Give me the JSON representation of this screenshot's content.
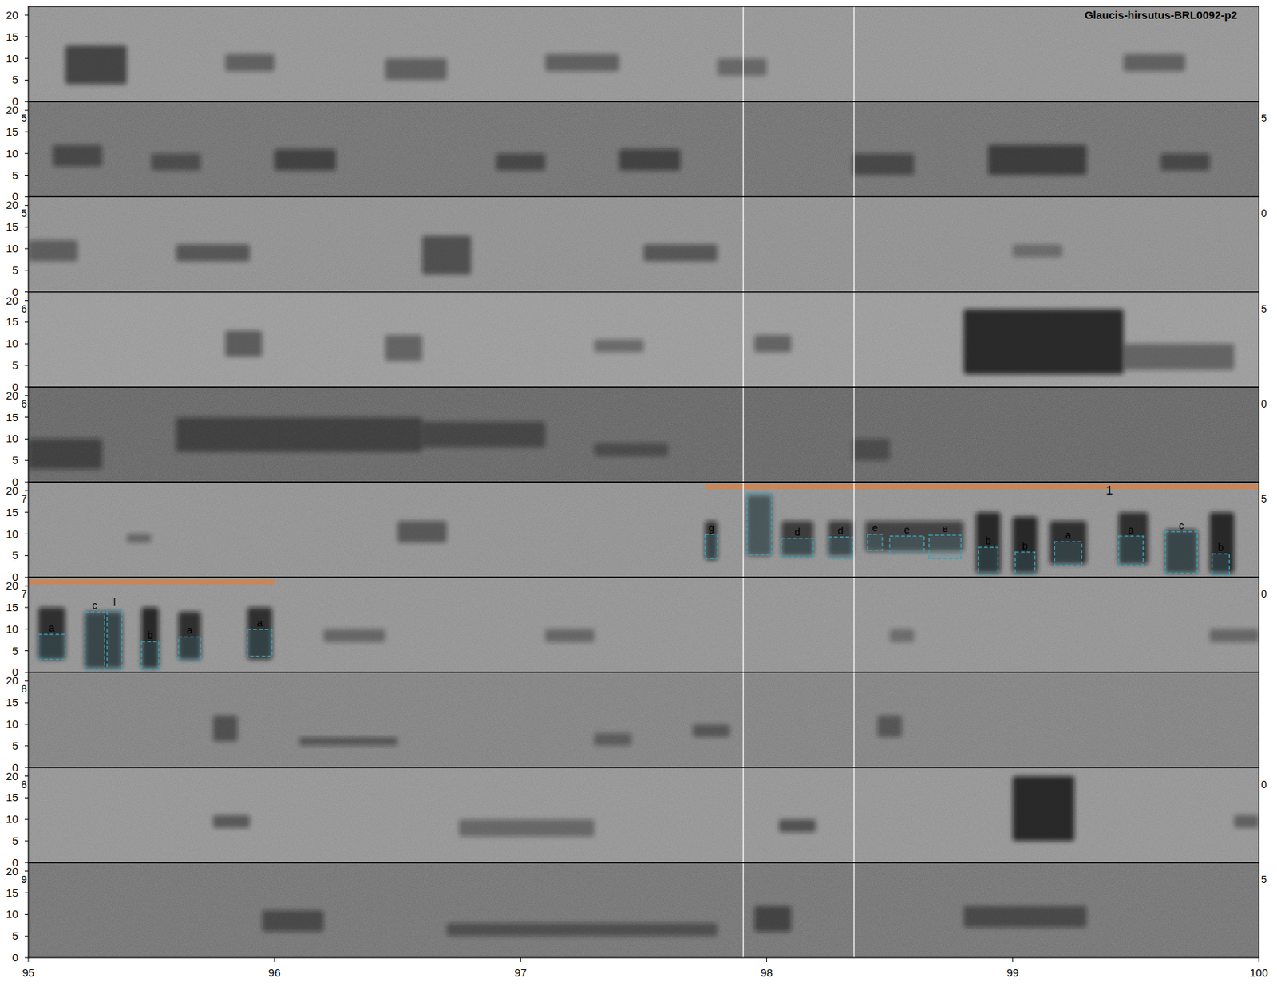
{
  "chart_data": {
    "type": "spectrogram",
    "title": "Glaucis-hirsutus-BRL0092-p2",
    "xlim": [
      95,
      100
    ],
    "xticks": [
      95,
      96,
      97,
      98,
      99,
      100
    ],
    "ylim": [
      0,
      22
    ],
    "yticks": [
      0,
      5,
      10,
      15,
      20
    ],
    "rows": [
      {
        "color": "#8f8f8f",
        "start_label": null,
        "end_label": null
      },
      {
        "color": "#6b6b6b",
        "start_label": "5",
        "end_label": "5"
      },
      {
        "color": "#8a8a8a",
        "start_label": "5",
        "end_label": "0"
      },
      {
        "color": "#959595",
        "start_label": "6",
        "end_label": "5"
      },
      {
        "color": "#5f5f5f",
        "start_label": "6",
        "end_label": "0"
      },
      {
        "color": "#8c8c8c",
        "start_label": "7",
        "end_label": "5"
      },
      {
        "color": "#8d8d8d",
        "start_label": "7",
        "end_label": "0"
      },
      {
        "color": "#7c7c7c",
        "start_label": "8",
        "end_label": null
      },
      {
        "color": "#8f8f8f",
        "start_label": "8",
        "end_label": "0"
      },
      {
        "color": "#6e6e6e",
        "start_label": "9",
        "end_label": "5"
      }
    ],
    "markers": [
      97.905,
      98.355
    ],
    "segments": [
      {
        "label": "1",
        "row": 6,
        "x": [
          97.75,
          100
        ],
        "color": "#c8875a"
      },
      {
        "row": 7,
        "x": [
          95,
          96
        ],
        "color": "#c8875a"
      }
    ],
    "annotations": [
      {
        "label": "g",
        "row": 6,
        "x": [
          97.75,
          97.8
        ],
        "freq": [
          4.3,
          9.9
        ]
      },
      {
        "row": 6,
        "x": [
          97.92,
          98.02
        ],
        "freq": [
          5.2,
          19.3
        ]
      },
      {
        "label": "d",
        "row": 6,
        "x": [
          98.06,
          98.19
        ],
        "freq": [
          4.7,
          9.0
        ]
      },
      {
        "label": "d",
        "row": 6,
        "x": [
          98.25,
          98.35
        ],
        "freq": [
          4.3,
          9.3
        ]
      },
      {
        "label": "e",
        "row": 6,
        "x": [
          98.41,
          98.47
        ],
        "freq": [
          6.2,
          9.9
        ]
      },
      {
        "label": "e",
        "row": 6,
        "x": [
          98.5,
          98.64
        ],
        "freq": [
          5.4,
          9.5
        ]
      },
      {
        "label": "e",
        "row": 6,
        "x": [
          98.66,
          98.79
        ],
        "freq": [
          4.3,
          9.7
        ]
      },
      {
        "label": "b",
        "row": 6,
        "x": [
          98.86,
          98.94
        ],
        "freq": [
          0.6,
          6.9
        ]
      },
      {
        "label": "b",
        "row": 6,
        "x": [
          99.01,
          99.09
        ],
        "freq": [
          0.6,
          5.8
        ]
      },
      {
        "label": "a",
        "row": 6,
        "x": [
          99.17,
          99.28
        ],
        "freq": [
          2.8,
          8.2
        ]
      },
      {
        "label": "a",
        "row": 6,
        "x": [
          99.43,
          99.53
        ],
        "freq": [
          2.8,
          9.5
        ]
      },
      {
        "label": "c",
        "row": 6,
        "x": [
          99.62,
          99.75
        ],
        "freq": [
          0.9,
          10.5
        ]
      },
      {
        "label": "b",
        "row": 6,
        "x": [
          99.81,
          99.88
        ],
        "freq": [
          0.4,
          5.4
        ]
      },
      {
        "label": "a",
        "row": 7,
        "x": [
          95.04,
          95.15
        ],
        "freq": [
          3.0,
          8.8
        ]
      },
      {
        "label": "c",
        "row": 7,
        "x": [
          95.23,
          95.31
        ],
        "freq": [
          0.6,
          14.0
        ]
      },
      {
        "label": "l",
        "row": 7,
        "x": [
          95.32,
          95.38
        ],
        "freq": [
          0.6,
          14.6
        ]
      },
      {
        "label": "b",
        "row": 7,
        "x": [
          95.46,
          95.53
        ],
        "freq": [
          0.6,
          7.1
        ]
      },
      {
        "label": "a",
        "row": 7,
        "x": [
          95.61,
          95.7
        ],
        "freq": [
          2.6,
          8.2
        ]
      },
      {
        "label": "a",
        "row": 7,
        "x": [
          95.89,
          95.99
        ],
        "freq": [
          3.7,
          9.9
        ]
      }
    ],
    "calls": [
      {
        "row": 1,
        "x": [
          95.15,
          95.4
        ],
        "freq": [
          4,
          13
        ],
        "level": 0.6
      },
      {
        "row": 1,
        "x": [
          95.8,
          96.0
        ],
        "freq": [
          7,
          11
        ],
        "level": 0.4
      },
      {
        "row": 1,
        "x": [
          96.45,
          96.7
        ],
        "freq": [
          5,
          10
        ],
        "level": 0.4
      },
      {
        "row": 1,
        "x": [
          97.1,
          97.4
        ],
        "freq": [
          7,
          11
        ],
        "level": 0.4
      },
      {
        "row": 1,
        "x": [
          97.8,
          98.0
        ],
        "freq": [
          6,
          10
        ],
        "level": 0.35
      },
      {
        "row": 1,
        "x": [
          99.45,
          99.7
        ],
        "freq": [
          7,
          11
        ],
        "level": 0.4
      },
      {
        "row": 2,
        "x": [
          95.1,
          95.3
        ],
        "freq": [
          7,
          12
        ],
        "level": 0.45
      },
      {
        "row": 2,
        "x": [
          95.5,
          95.7
        ],
        "freq": [
          6,
          10
        ],
        "level": 0.4
      },
      {
        "row": 2,
        "x": [
          96.0,
          96.25
        ],
        "freq": [
          6,
          11
        ],
        "level": 0.5
      },
      {
        "row": 2,
        "x": [
          96.9,
          97.1
        ],
        "freq": [
          6,
          10
        ],
        "level": 0.45
      },
      {
        "row": 2,
        "x": [
          97.4,
          97.65
        ],
        "freq": [
          6,
          11
        ],
        "level": 0.5
      },
      {
        "row": 2,
        "x": [
          98.35,
          98.6
        ],
        "freq": [
          5,
          10
        ],
        "level": 0.45
      },
      {
        "row": 2,
        "x": [
          98.9,
          99.3
        ],
        "freq": [
          5,
          12
        ],
        "level": 0.55
      },
      {
        "row": 2,
        "x": [
          99.6,
          99.8
        ],
        "freq": [
          6,
          10
        ],
        "level": 0.45
      },
      {
        "row": 3,
        "x": [
          95.0,
          95.2
        ],
        "freq": [
          7,
          12
        ],
        "level": 0.4
      },
      {
        "row": 3,
        "x": [
          95.6,
          95.9
        ],
        "freq": [
          7,
          11
        ],
        "level": 0.45
      },
      {
        "row": 3,
        "x": [
          96.6,
          96.8
        ],
        "freq": [
          4,
          13
        ],
        "level": 0.5
      },
      {
        "row": 3,
        "x": [
          97.5,
          97.8
        ],
        "freq": [
          7,
          11
        ],
        "level": 0.45
      },
      {
        "row": 3,
        "x": [
          99.0,
          99.2
        ],
        "freq": [
          8,
          11
        ],
        "level": 0.3
      },
      {
        "row": 4,
        "x": [
          95.8,
          95.95
        ],
        "freq": [
          7,
          13
        ],
        "level": 0.45
      },
      {
        "row": 4,
        "x": [
          96.45,
          96.6
        ],
        "freq": [
          6,
          12
        ],
        "level": 0.4
      },
      {
        "row": 4,
        "x": [
          97.3,
          97.5
        ],
        "freq": [
          8,
          11
        ],
        "level": 0.35
      },
      {
        "row": 4,
        "x": [
          97.95,
          98.1
        ],
        "freq": [
          8,
          12
        ],
        "level": 0.4
      },
      {
        "row": 4,
        "x": [
          98.8,
          99.45
        ],
        "freq": [
          3,
          18
        ],
        "level": 0.8
      },
      {
        "row": 4,
        "x": [
          99.45,
          99.9
        ],
        "freq": [
          4,
          10
        ],
        "level": 0.4
      },
      {
        "row": 5,
        "x": [
          95.0,
          95.3
        ],
        "freq": [
          3,
          10
        ],
        "level": 0.45
      },
      {
        "row": 5,
        "x": [
          95.6,
          96.6
        ],
        "freq": [
          7,
          15
        ],
        "level": 0.45
      },
      {
        "row": 5,
        "x": [
          96.6,
          97.1
        ],
        "freq": [
          8,
          14
        ],
        "level": 0.4
      },
      {
        "row": 5,
        "x": [
          97.3,
          97.6
        ],
        "freq": [
          6,
          9
        ],
        "level": 0.35
      },
      {
        "row": 5,
        "x": [
          98.35,
          98.5
        ],
        "freq": [
          5,
          10
        ],
        "level": 0.35
      },
      {
        "row": 6,
        "x": [
          95.4,
          95.5
        ],
        "freq": [
          8,
          10
        ],
        "level": 0.35
      },
      {
        "row": 6,
        "x": [
          96.5,
          96.7
        ],
        "freq": [
          8,
          13
        ],
        "level": 0.45
      },
      {
        "row": 6,
        "x": [
          97.75,
          97.8
        ],
        "freq": [
          4,
          13
        ],
        "level": 0.7
      },
      {
        "row": 6,
        "x": [
          97.92,
          98.02
        ],
        "freq": [
          5,
          19
        ],
        "level": 0.55
      },
      {
        "row": 6,
        "x": [
          98.06,
          98.19
        ],
        "freq": [
          5,
          13
        ],
        "level": 0.65
      },
      {
        "row": 6,
        "x": [
          98.25,
          98.35
        ],
        "freq": [
          5,
          13
        ],
        "level": 0.65
      },
      {
        "row": 6,
        "x": [
          98.4,
          98.8
        ],
        "freq": [
          6,
          13
        ],
        "level": 0.6
      },
      {
        "row": 6,
        "x": [
          98.85,
          98.95
        ],
        "freq": [
          1,
          15
        ],
        "level": 0.8
      },
      {
        "row": 6,
        "x": [
          99.0,
          99.1
        ],
        "freq": [
          1,
          14
        ],
        "level": 0.8
      },
      {
        "row": 6,
        "x": [
          99.15,
          99.3
        ],
        "freq": [
          3,
          13
        ],
        "level": 0.75
      },
      {
        "row": 6,
        "x": [
          99.43,
          99.55
        ],
        "freq": [
          3,
          15
        ],
        "level": 0.75
      },
      {
        "row": 6,
        "x": [
          99.62,
          99.75
        ],
        "freq": [
          1,
          11
        ],
        "level": 0.7
      },
      {
        "row": 6,
        "x": [
          99.8,
          99.9
        ],
        "freq": [
          1,
          15
        ],
        "level": 0.8
      },
      {
        "row": 7,
        "x": [
          95.04,
          95.15
        ],
        "freq": [
          3,
          15
        ],
        "level": 0.75
      },
      {
        "row": 7,
        "x": [
          95.23,
          95.38
        ],
        "freq": [
          1,
          14
        ],
        "level": 0.7
      },
      {
        "row": 7,
        "x": [
          95.46,
          95.53
        ],
        "freq": [
          1,
          15
        ],
        "level": 0.8
      },
      {
        "row": 7,
        "x": [
          95.61,
          95.7
        ],
        "freq": [
          3,
          14
        ],
        "level": 0.75
      },
      {
        "row": 7,
        "x": [
          95.89,
          95.99
        ],
        "freq": [
          3,
          15
        ],
        "level": 0.75
      },
      {
        "row": 7,
        "x": [
          96.2,
          96.45
        ],
        "freq": [
          7,
          10
        ],
        "level": 0.35
      },
      {
        "row": 7,
        "x": [
          97.1,
          97.3
        ],
        "freq": [
          7,
          10
        ],
        "level": 0.35
      },
      {
        "row": 7,
        "x": [
          98.5,
          98.6
        ],
        "freq": [
          7,
          10
        ],
        "level": 0.3
      },
      {
        "row": 7,
        "x": [
          99.8,
          100
        ],
        "freq": [
          7,
          10
        ],
        "level": 0.35
      },
      {
        "row": 8,
        "x": [
          95.75,
          95.85
        ],
        "freq": [
          6,
          12
        ],
        "level": 0.45
      },
      {
        "row": 8,
        "x": [
          96.1,
          96.5
        ],
        "freq": [
          5,
          7
        ],
        "level": 0.4
      },
      {
        "row": 8,
        "x": [
          97.3,
          97.45
        ],
        "freq": [
          5,
          8
        ],
        "level": 0.35
      },
      {
        "row": 8,
        "x": [
          97.7,
          97.85
        ],
        "freq": [
          7,
          10
        ],
        "level": 0.4
      },
      {
        "row": 8,
        "x": [
          98.45,
          98.55
        ],
        "freq": [
          7,
          12
        ],
        "level": 0.4
      },
      {
        "row": 9,
        "x": [
          95.75,
          95.9
        ],
        "freq": [
          8,
          11
        ],
        "level": 0.45
      },
      {
        "row": 9,
        "x": [
          96.75,
          97.3
        ],
        "freq": [
          6,
          10
        ],
        "level": 0.35
      },
      {
        "row": 9,
        "x": [
          98.05,
          98.2
        ],
        "freq": [
          7,
          10
        ],
        "level": 0.5
      },
      {
        "row": 9,
        "x": [
          99.0,
          99.25
        ],
        "freq": [
          5,
          20
        ],
        "level": 0.8
      },
      {
        "row": 9,
        "x": [
          99.9,
          100
        ],
        "freq": [
          8,
          11
        ],
        "level": 0.4
      },
      {
        "row": 10,
        "x": [
          95.95,
          96.2
        ],
        "freq": [
          6,
          11
        ],
        "level": 0.45
      },
      {
        "row": 10,
        "x": [
          96.7,
          97.8
        ],
        "freq": [
          5,
          8
        ],
        "level": 0.4
      },
      {
        "row": 10,
        "x": [
          97.95,
          98.1
        ],
        "freq": [
          6,
          12
        ],
        "level": 0.5
      },
      {
        "row": 10,
        "x": [
          98.8,
          99.3
        ],
        "freq": [
          7,
          12
        ],
        "level": 0.45
      }
    ]
  }
}
